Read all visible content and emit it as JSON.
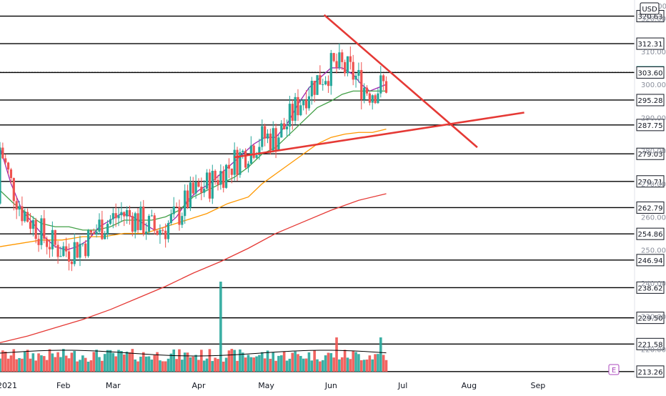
{
  "currency_label": "USD",
  "colors": {
    "up": "#26a69a",
    "down": "#ef5350",
    "ma_short": "#9c27b0",
    "ma_mid": "#43a047",
    "ma_long": "#ff9800",
    "ma_200": "#e53935",
    "trendline": "#e53935",
    "level_line": "#000000",
    "volume_ma": "#000000"
  },
  "earnings_marker": "E",
  "chart_data": {
    "type": "candlestick",
    "title": "",
    "ylim": [
      211.5,
      325.5
    ],
    "x_ticks": [
      "2021",
      "Feb",
      "Mar",
      "Apr",
      "May",
      "Jun",
      "Jul",
      "Aug",
      "Sep"
    ],
    "y_ticks": [
      220,
      230,
      240,
      250,
      260,
      270,
      280,
      290,
      300,
      310,
      320
    ],
    "horizontal_levels": [
      320.63,
      312.31,
      303.69,
      303.6,
      295.28,
      287.75,
      279.03,
      270.71,
      262.79,
      254.86,
      246.94,
      238.62,
      229.5,
      221.58,
      213.26
    ],
    "highlight_price": 303.69,
    "top_partial_label": "315.00",
    "series": [
      {
        "name": "",
        "kind": "moving-average",
        "color_key": "ma_short",
        "points": [
          [
            0,
            281
          ],
          [
            8,
            270
          ],
          [
            16,
            262
          ],
          [
            24,
            258
          ],
          [
            32,
            254
          ],
          [
            40,
            251
          ],
          [
            48,
            250
          ],
          [
            56,
            251
          ],
          [
            64,
            253
          ],
          [
            72,
            257
          ],
          [
            80,
            259
          ],
          [
            88,
            261
          ],
          [
            96,
            260
          ],
          [
            104,
            258
          ],
          [
            112,
            256
          ],
          [
            120,
            257
          ],
          [
            128,
            260
          ],
          [
            136,
            265
          ],
          [
            144,
            268
          ],
          [
            152,
            270
          ],
          [
            160,
            273
          ],
          [
            168,
            276
          ],
          [
            176,
            279
          ],
          [
            184,
            282
          ],
          [
            192,
            284
          ],
          [
            200,
            284
          ],
          [
            208,
            288
          ],
          [
            216,
            294
          ],
          [
            224,
            299
          ],
          [
            232,
            302
          ],
          [
            240,
            305
          ],
          [
            248,
            305
          ],
          [
            256,
            303
          ],
          [
            262,
            300
          ],
          [
            268,
            298
          ],
          [
            274,
            299
          ],
          [
            280,
            300
          ]
        ]
      },
      {
        "name": "",
        "kind": "moving-average",
        "color_key": "ma_mid",
        "points": [
          [
            0,
            268
          ],
          [
            10,
            264
          ],
          [
            20,
            261
          ],
          [
            30,
            258
          ],
          [
            40,
            257
          ],
          [
            50,
            257
          ],
          [
            60,
            256
          ],
          [
            70,
            256
          ],
          [
            80,
            257
          ],
          [
            90,
            259
          ],
          [
            100,
            259
          ],
          [
            110,
            259
          ],
          [
            120,
            260
          ],
          [
            130,
            262
          ],
          [
            140,
            266
          ],
          [
            150,
            268
          ],
          [
            160,
            270
          ],
          [
            170,
            272
          ],
          [
            180,
            275
          ],
          [
            190,
            279
          ],
          [
            200,
            281
          ],
          [
            210,
            285
          ],
          [
            220,
            289
          ],
          [
            230,
            293
          ],
          [
            240,
            295
          ],
          [
            248,
            297
          ],
          [
            256,
            298
          ],
          [
            264,
            298
          ],
          [
            272,
            298
          ],
          [
            280,
            298
          ]
        ]
      },
      {
        "name": "",
        "kind": "moving-average",
        "color_key": "ma_long",
        "points": [
          [
            0,
            251
          ],
          [
            15,
            252
          ],
          [
            30,
            253
          ],
          [
            45,
            253
          ],
          [
            60,
            254
          ],
          [
            75,
            254
          ],
          [
            90,
            255
          ],
          [
            105,
            255
          ],
          [
            120,
            257
          ],
          [
            135,
            259
          ],
          [
            150,
            261
          ],
          [
            165,
            264
          ],
          [
            180,
            266
          ],
          [
            190,
            270
          ],
          [
            200,
            273
          ],
          [
            210,
            276
          ],
          [
            220,
            279
          ],
          [
            230,
            282
          ],
          [
            240,
            284
          ],
          [
            250,
            285
          ],
          [
            260,
            285.5
          ],
          [
            270,
            285.5
          ],
          [
            280,
            286.5
          ]
        ]
      },
      {
        "name": "",
        "kind": "moving-average",
        "color_key": "ma_200",
        "points": [
          [
            0,
            222
          ],
          [
            20,
            224
          ],
          [
            40,
            226.5
          ],
          [
            60,
            229
          ],
          [
            80,
            232
          ],
          [
            100,
            235.5
          ],
          [
            120,
            239
          ],
          [
            140,
            243
          ],
          [
            160,
            246.5
          ],
          [
            180,
            250.5
          ],
          [
            200,
            255
          ],
          [
            220,
            258.5
          ],
          [
            240,
            262
          ],
          [
            260,
            265
          ],
          [
            280,
            267
          ]
        ]
      }
    ],
    "trendlines": [
      {
        "from": [
          170,
          278
        ],
        "to": [
          380,
          291.5
        ],
        "color_key": "trendline"
      },
      {
        "from": [
          235,
          321
        ],
        "to": [
          346,
          281
        ],
        "color_key": "trendline"
      }
    ],
    "x_domain": [
      0,
      460
    ],
    "x_tick_positions": [
      0,
      46,
      82,
      144,
      193,
      240,
      292,
      340,
      390
    ]
  }
}
